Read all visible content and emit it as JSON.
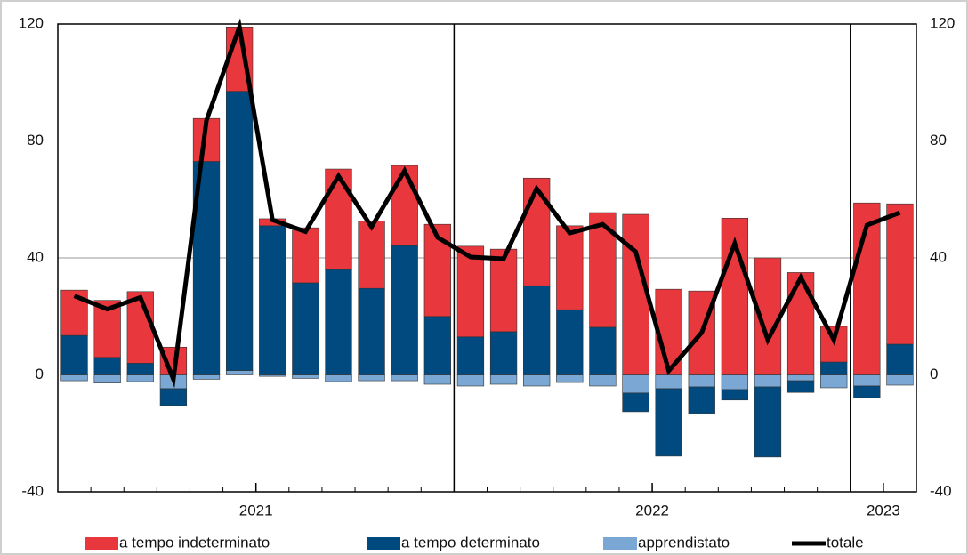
{
  "chart_data": {
    "type": "stacked-bar-line",
    "categories": [
      null,
      null,
      null,
      null,
      null,
      null,
      null,
      null,
      null,
      null,
      null,
      null,
      null,
      null,
      null,
      null,
      null,
      null,
      null,
      null,
      null,
      null,
      null,
      null,
      null,
      null
    ],
    "x_groups": [
      {
        "label": "2021",
        "months": 12
      },
      {
        "label": "2022",
        "months": 12
      },
      {
        "label": "2023",
        "months": 2
      }
    ],
    "series": [
      {
        "name": "apprendistato",
        "color": "#7ba7d4",
        "kind": "bar",
        "values": [
          -2,
          -2.8,
          -2.3,
          -4.7,
          -1.5,
          1.5,
          -0.5,
          -1.2,
          -2.3,
          -2,
          -2,
          -3.2,
          -3.8,
          -3.2,
          -3.8,
          -2.6,
          -3.8,
          -6.2,
          -4.7,
          -4.1,
          -5,
          -4.1,
          -2,
          -4.4,
          -3.8,
          -3.5
        ]
      },
      {
        "name": "a tempo determinato",
        "color": "#004a80",
        "kind": "bar",
        "values": [
          13.5,
          6,
          4,
          -5.8,
          73,
          95.5,
          51,
          31.5,
          36,
          29.6,
          44.2,
          20,
          13,
          14.8,
          30.5,
          22.3,
          16.3,
          -6.4,
          -23.1,
          -9.1,
          -3.6,
          -24,
          -4,
          4.4,
          -4,
          10.5
        ]
      },
      {
        "name": "a tempo indeterminato",
        "color": "#e8383d",
        "kind": "bar",
        "values": [
          15.5,
          19.5,
          24.5,
          9.5,
          14.7,
          22,
          2.4,
          18.8,
          34.4,
          23,
          27.4,
          31.5,
          31,
          28.2,
          36.8,
          28.7,
          39.2,
          54.9,
          29.3,
          28.7,
          53.6,
          40,
          35,
          12.2,
          58.8,
          48
        ]
      },
      {
        "name": "totale",
        "color": "#000000",
        "kind": "line",
        "values": [
          27,
          22.5,
          26.5,
          -1.5,
          87,
          119,
          53,
          49,
          68,
          50.6,
          69.8,
          47,
          40.3,
          39.7,
          63.7,
          48.5,
          51.5,
          42.1,
          1.4,
          14.5,
          45,
          12,
          33.3,
          12,
          51.2,
          55.5
        ]
      }
    ],
    "legend_order": [
      2,
      1,
      0,
      3
    ],
    "ylim": [
      -40,
      120
    ],
    "yticks": [
      -40,
      0,
      40,
      80,
      120
    ],
    "y2lim": [
      -40,
      120
    ],
    "y2ticks": [
      -40,
      0,
      40,
      80,
      120
    ],
    "grid": true,
    "legend": "bottom"
  }
}
